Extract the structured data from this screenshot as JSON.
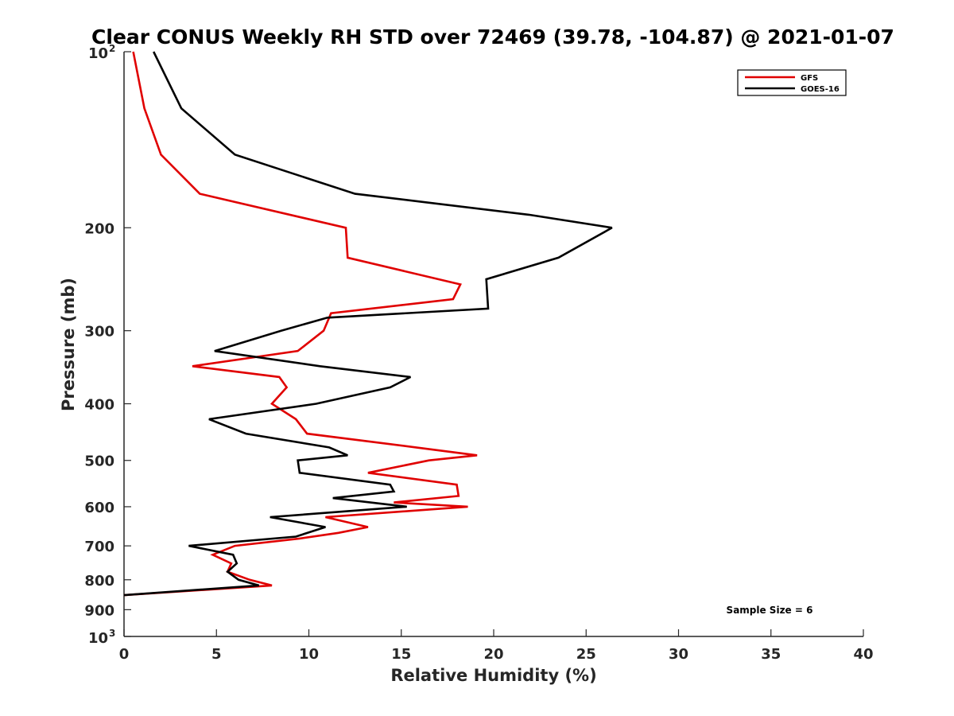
{
  "chart_data": {
    "type": "line",
    "title": "Clear CONUS Weekly RH STD over 72469 (39.78, -104.87) @ 2021-01-07",
    "xlabel": "Relative Humidity (%)",
    "ylabel": "Pressure (mb)",
    "xlim": [
      0,
      40
    ],
    "ylim": [
      100,
      1000
    ],
    "y_scale": "log",
    "y_reversed": true,
    "grid": false,
    "legend_position": "top-right",
    "x_ticks": [
      0,
      5,
      10,
      15,
      20,
      25,
      30,
      35,
      40
    ],
    "y_ticks": [
      {
        "value": 100,
        "label": "10",
        "exp": "2"
      },
      {
        "value": 200,
        "label": "200",
        "exp": ""
      },
      {
        "value": 300,
        "label": "300",
        "exp": ""
      },
      {
        "value": 400,
        "label": "400",
        "exp": ""
      },
      {
        "value": 500,
        "label": "500",
        "exp": ""
      },
      {
        "value": 600,
        "label": "600",
        "exp": ""
      },
      {
        "value": 700,
        "label": "700",
        "exp": ""
      },
      {
        "value": 800,
        "label": "800",
        "exp": ""
      },
      {
        "value": 900,
        "label": "900",
        "exp": ""
      },
      {
        "value": 1000,
        "label": "10",
        "exp": "3"
      }
    ],
    "annotation": "Sample Size = 6",
    "series": [
      {
        "name": "GFS",
        "color": "#e00000",
        "points": [
          [
            0.5,
            100
          ],
          [
            1.1,
            125
          ],
          [
            2.0,
            150
          ],
          [
            4.1,
            175
          ],
          [
            12.0,
            200
          ],
          [
            12.1,
            225
          ],
          [
            18.2,
            250
          ],
          [
            17.8,
            265
          ],
          [
            11.2,
            280
          ],
          [
            10.8,
            300
          ],
          [
            9.4,
            325
          ],
          [
            3.7,
            345
          ],
          [
            8.4,
            360
          ],
          [
            8.8,
            375
          ],
          [
            8.0,
            400
          ],
          [
            9.3,
            425
          ],
          [
            9.9,
            450
          ],
          [
            15.8,
            475
          ],
          [
            19.1,
            490
          ],
          [
            16.5,
            500
          ],
          [
            13.2,
            525
          ],
          [
            18.0,
            550
          ],
          [
            18.1,
            575
          ],
          [
            14.6,
            590
          ],
          [
            18.6,
            600
          ],
          [
            10.9,
            625
          ],
          [
            13.2,
            650
          ],
          [
            11.6,
            665
          ],
          [
            9.5,
            680
          ],
          [
            6.0,
            700
          ],
          [
            4.8,
            725
          ],
          [
            5.8,
            750
          ],
          [
            5.6,
            775
          ],
          [
            6.8,
            800
          ],
          [
            8.0,
            818
          ],
          [
            0.0,
            850
          ]
        ]
      },
      {
        "name": "GOES-16",
        "color": "#000000",
        "points": [
          [
            1.6,
            100
          ],
          [
            3.1,
            125
          ],
          [
            6.0,
            150
          ],
          [
            12.5,
            175
          ],
          [
            21.9,
            190
          ],
          [
            26.4,
            200
          ],
          [
            23.5,
            225
          ],
          [
            19.6,
            245
          ],
          [
            19.7,
            275
          ],
          [
            11.0,
            285
          ],
          [
            8.5,
            300
          ],
          [
            4.9,
            325
          ],
          [
            10.6,
            345
          ],
          [
            15.5,
            360
          ],
          [
            14.4,
            375
          ],
          [
            10.4,
            400
          ],
          [
            4.6,
            425
          ],
          [
            6.6,
            450
          ],
          [
            11.1,
            475
          ],
          [
            12.1,
            490
          ],
          [
            9.4,
            500
          ],
          [
            9.5,
            525
          ],
          [
            14.4,
            550
          ],
          [
            14.6,
            565
          ],
          [
            11.3,
            580
          ],
          [
            15.3,
            600
          ],
          [
            7.9,
            625
          ],
          [
            10.9,
            650
          ],
          [
            9.3,
            675
          ],
          [
            3.5,
            700
          ],
          [
            5.9,
            725
          ],
          [
            6.1,
            750
          ],
          [
            5.6,
            775
          ],
          [
            6.2,
            800
          ],
          [
            7.3,
            818
          ],
          [
            0.0,
            850
          ]
        ]
      }
    ]
  }
}
